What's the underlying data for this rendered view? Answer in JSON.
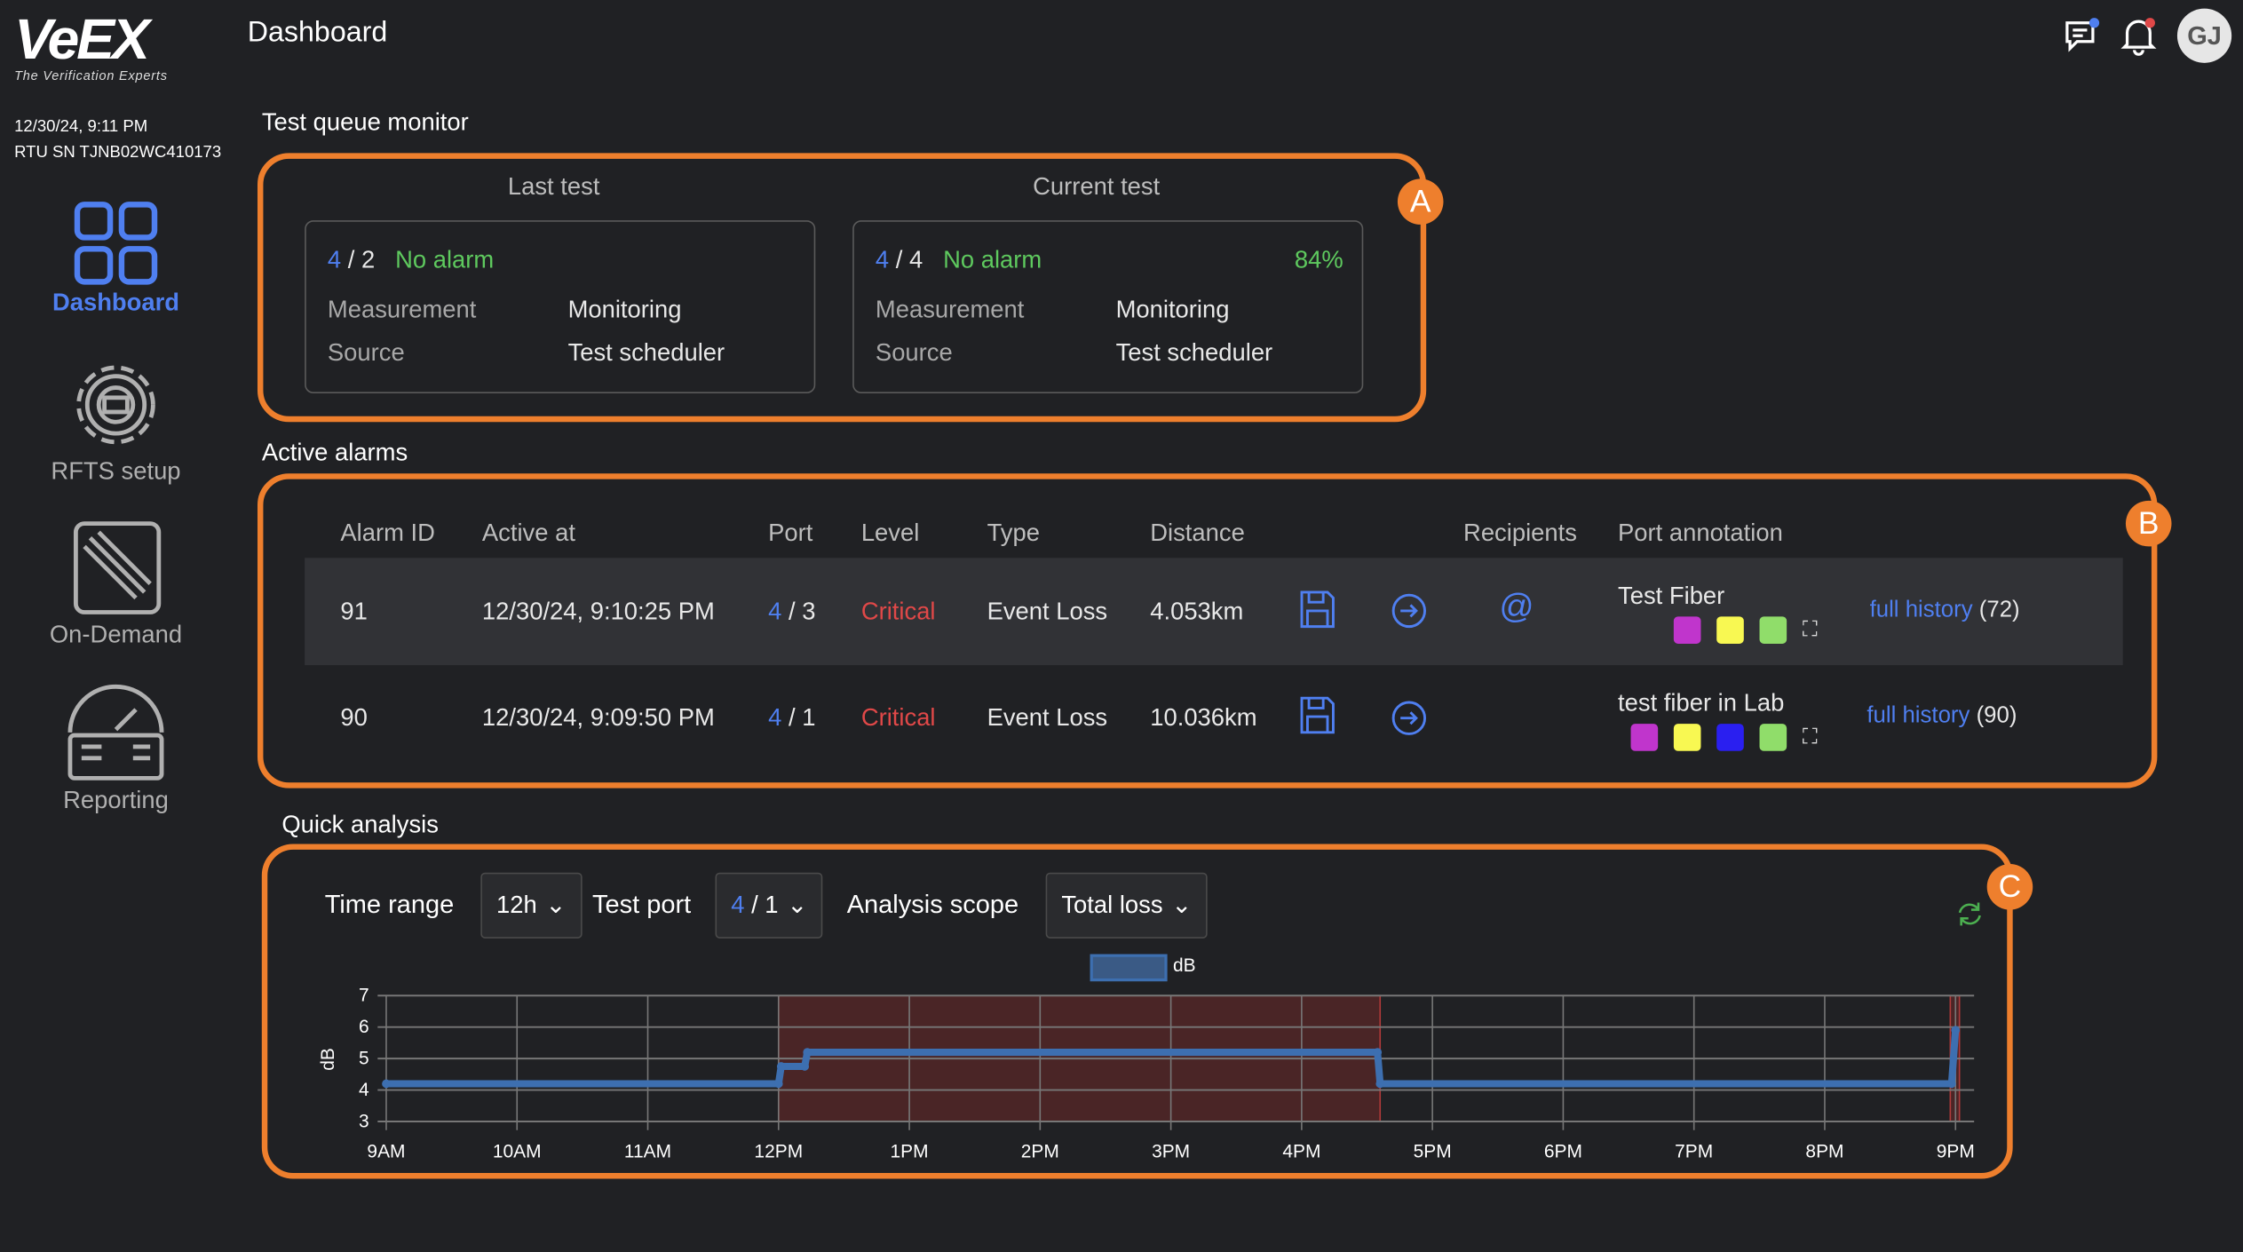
{
  "brand": {
    "name": "VeEX",
    "tagline": "The Verification Experts"
  },
  "device": {
    "datetime": "12/30/24, 9:11 PM",
    "serial": "RTU SN TJNB02WC410173"
  },
  "sidebar": {
    "items": [
      {
        "label": "Dashboard",
        "active": true
      },
      {
        "label": "RFTS setup"
      },
      {
        "label": "On-Demand"
      },
      {
        "label": "Reporting"
      }
    ]
  },
  "header": {
    "title": "Dashboard",
    "avatar": "GJ"
  },
  "queue": {
    "title": "Test queue monitor",
    "badge": "A",
    "last": {
      "heading": "Last test",
      "port_a": "4",
      "port_b": "2",
      "status": "No alarm",
      "measurement_label": "Measurement",
      "measurement": "Monitoring",
      "source_label": "Source",
      "source": "Test scheduler"
    },
    "current": {
      "heading": "Current test",
      "port_a": "4",
      "port_b": "4",
      "status": "No alarm",
      "progress": "84%",
      "measurement_label": "Measurement",
      "measurement": "Monitoring",
      "source_label": "Source",
      "source": "Test scheduler"
    }
  },
  "alarms": {
    "title": "Active alarms",
    "badge": "B",
    "columns": [
      "Alarm ID",
      "Active at",
      "Port",
      "Level",
      "Type",
      "Distance",
      "Recipients",
      "Port annotation"
    ],
    "rows": [
      {
        "id": "91",
        "active_at": "12/30/24, 9:10:25 PM",
        "port_a": "4",
        "port_b": "3",
        "level": "Critical",
        "type": "Event Loss",
        "distance": "4.053km",
        "annotation": "Test Fiber",
        "colors": [
          "#c035cc",
          "#f8f852",
          "#90dd6a"
        ],
        "history": "full history",
        "count": "(72)",
        "recipient": "@"
      },
      {
        "id": "90",
        "active_at": "12/30/24, 9:09:50 PM",
        "port_a": "4",
        "port_b": "1",
        "level": "Critical",
        "type": "Event Loss",
        "distance": "10.036km",
        "annotation": "test fiber in Lab",
        "colors": [
          "#c035cc",
          "#f8f852",
          "#2a1ff0",
          "#90dd6a"
        ],
        "history": "full history",
        "count": "(90)"
      }
    ]
  },
  "analysis": {
    "title": "Quick analysis",
    "badge": "C",
    "time_range_label": "Time range",
    "time_range": "12h",
    "port_label": "Test port",
    "port_a": "4",
    "port_b": "1",
    "scope_label": "Analysis scope",
    "scope": "Total loss"
  },
  "chart_data": {
    "type": "line",
    "legend": "dB",
    "ylabel": "dB",
    "ylim": [
      3,
      7
    ],
    "yticks": [
      "3",
      "4",
      "5",
      "6",
      "7"
    ],
    "xlim": [
      9,
      21
    ],
    "xticks": [
      "9AM",
      "10AM",
      "11AM",
      "12PM",
      "1PM",
      "2PM",
      "3PM",
      "4PM",
      "5PM",
      "6PM",
      "7PM",
      "8PM",
      "9PM"
    ],
    "series": [
      {
        "name": "dB",
        "points": [
          [
            9,
            4.2
          ],
          [
            12,
            4.2
          ],
          [
            12.02,
            4.75
          ],
          [
            12.2,
            4.75
          ],
          [
            12.22,
            5.2
          ],
          [
            16.58,
            5.2
          ],
          [
            16.6,
            4.2
          ],
          [
            20.97,
            4.2
          ],
          [
            21,
            5.9
          ]
        ]
      }
    ],
    "alarm_ranges": [
      [
        12,
        16.6
      ],
      [
        20.96,
        21.03
      ]
    ],
    "colors": {
      "line": "#3d6fb0",
      "alarm": "#4a2526"
    }
  }
}
